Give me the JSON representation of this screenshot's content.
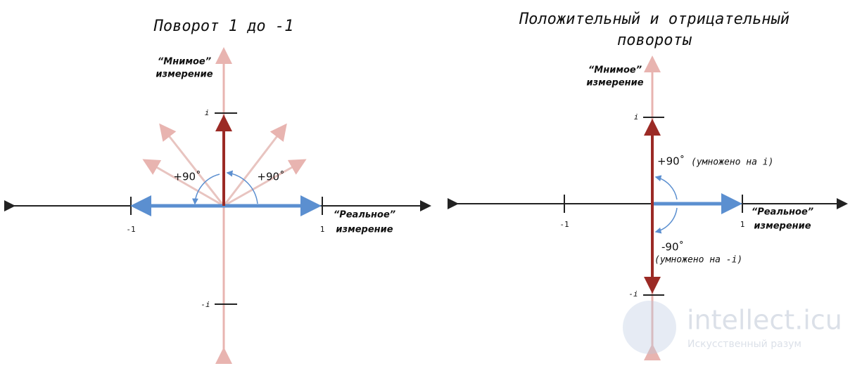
{
  "left": {
    "title": "Поворот 1 до -1",
    "imaginary_label": [
      "“Мнимое”",
      "измерение"
    ],
    "real_label": [
      "“Реальное”",
      "измерение"
    ],
    "tick_i": "i",
    "tick_minus_i": "-i",
    "tick_minus_1": "-1",
    "tick_1": "1",
    "angle_left": "+90˚",
    "angle_right": "+90˚"
  },
  "right": {
    "title": [
      "Положительный и отрицательный",
      "повороты"
    ],
    "imaginary_label": [
      "“Мнимое”",
      "измерение"
    ],
    "real_label": [
      "“Реальное”",
      "измерение"
    ],
    "tick_i": "i",
    "tick_minus_i": "-i",
    "tick_minus_1": "-1",
    "tick_1": "1",
    "positive_angle": "+90˚",
    "positive_note": "(умножено на i)",
    "negative_angle": "-90˚",
    "negative_note": "(умножено на -i)"
  },
  "watermark": {
    "name": "intellect.icu",
    "tagline": "Искусственный разум"
  }
}
